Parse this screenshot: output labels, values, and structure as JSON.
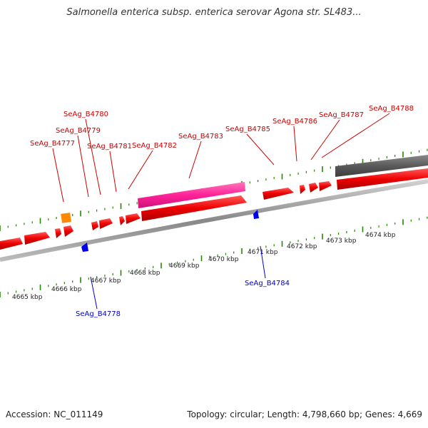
{
  "title": "Salmonella enterica subsp. enterica serovar Agona str. SL483...",
  "footer": {
    "accession_label": "Accession:",
    "accession_value": "NC_011149",
    "topology_label": "Topology:",
    "topology_value": "circular",
    "length_label": "Length:",
    "length_value": "4,798,660 bp",
    "genes_label": "Genes:",
    "genes_value": "4,669"
  },
  "colors": {
    "cds": "#ff0000",
    "rrna_pink": "#ff3399",
    "orange_feature": "#ff8800",
    "blue_feature": "#0000ee",
    "gray_feature": "#606060",
    "backbone": "#999999",
    "tick_green": "#228800",
    "label_red": "#cc0000",
    "label_blue": "#0000cc"
  },
  "ruler_labels": [
    "4665 kbp",
    "4666 kbp",
    "4667 kbp",
    "4668 kbp",
    "4669 kbp",
    "4670 kbp",
    "4671 kbp",
    "4672 kbp",
    "4673 kbp",
    "4674 kbp"
  ],
  "gene_labels_top": [
    "SeAg_B4777",
    "SeAg_B4779",
    "SeAg_B4780",
    "SeAg_B4781",
    "SeAg_B4782",
    "SeAg_B4783",
    "SeAg_B4785",
    "SeAg_B4786",
    "SeAg_B4787",
    "SeAg_B4788"
  ],
  "gene_labels_bottom": [
    "SeAg_B4778",
    "SeAg_B4784"
  ]
}
